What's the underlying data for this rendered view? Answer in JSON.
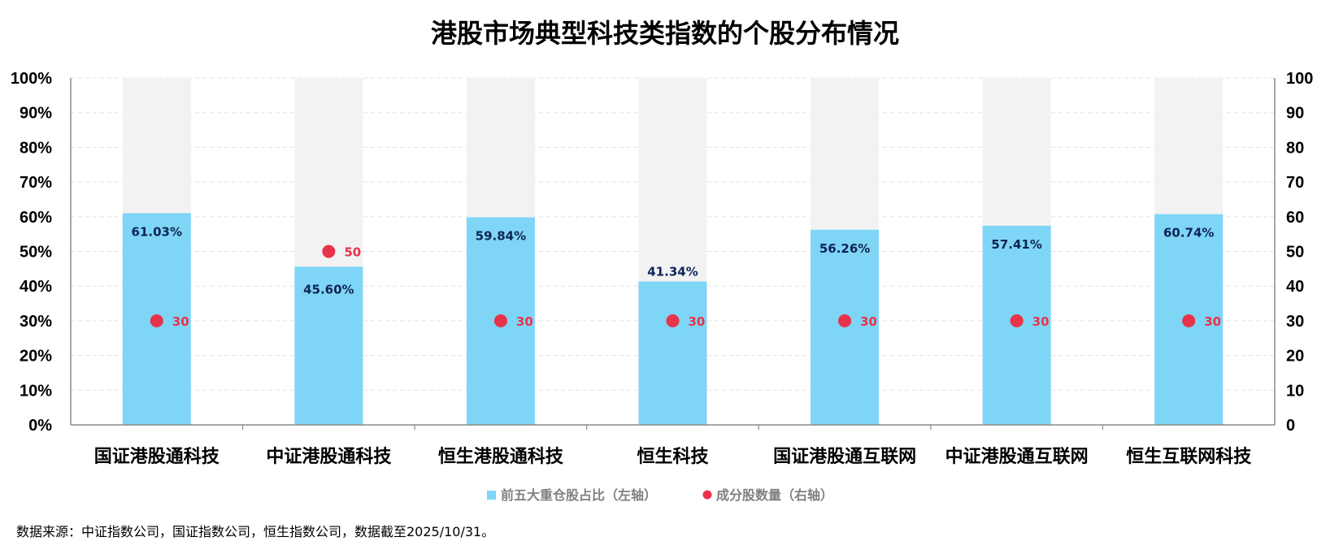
{
  "chart_data": {
    "type": "bar",
    "title": "港股市场典型科技类指数的个股分布情况",
    "categories": [
      "国证港股通科技",
      "中证港股通科技",
      "恒生港股通科技",
      "恒生科技",
      "国证港股通互联网",
      "中证港股通互联网",
      "恒生互联网科技"
    ],
    "series": [
      {
        "name": "前五大重仓股占比（左轴）",
        "axis": "left",
        "type": "bar",
        "values": [
          61.03,
          45.6,
          59.84,
          41.34,
          56.26,
          57.41,
          60.74
        ],
        "labels": [
          "61.03%",
          "45.60%",
          "59.84%",
          "41.34%",
          "56.26%",
          "57.41%",
          "60.74%"
        ],
        "color": "#7fd5f5"
      },
      {
        "name": "成分股数量（右轴）",
        "axis": "right",
        "type": "scatter",
        "values": [
          30,
          50,
          30,
          30,
          30,
          30,
          30
        ],
        "labels": [
          "30",
          "50",
          "30",
          "30",
          "30",
          "30",
          "30"
        ],
        "color": "#e8334a"
      }
    ],
    "background_bar_color": "#f2f2f2",
    "left_axis": {
      "ylim": [
        0,
        100
      ],
      "ticks": [
        "0%",
        "10%",
        "20%",
        "30%",
        "40%",
        "50%",
        "60%",
        "70%",
        "80%",
        "90%",
        "100%"
      ]
    },
    "right_axis": {
      "ylim": [
        0,
        100
      ],
      "ticks": [
        "0",
        "10",
        "20",
        "30",
        "40",
        "50",
        "60",
        "70",
        "80",
        "90",
        "100"
      ]
    },
    "grid": true,
    "legend_position": "bottom"
  },
  "source": "数据来源：中证指数公司，国证指数公司，恒生指数公司，数据截至2025/10/31。"
}
